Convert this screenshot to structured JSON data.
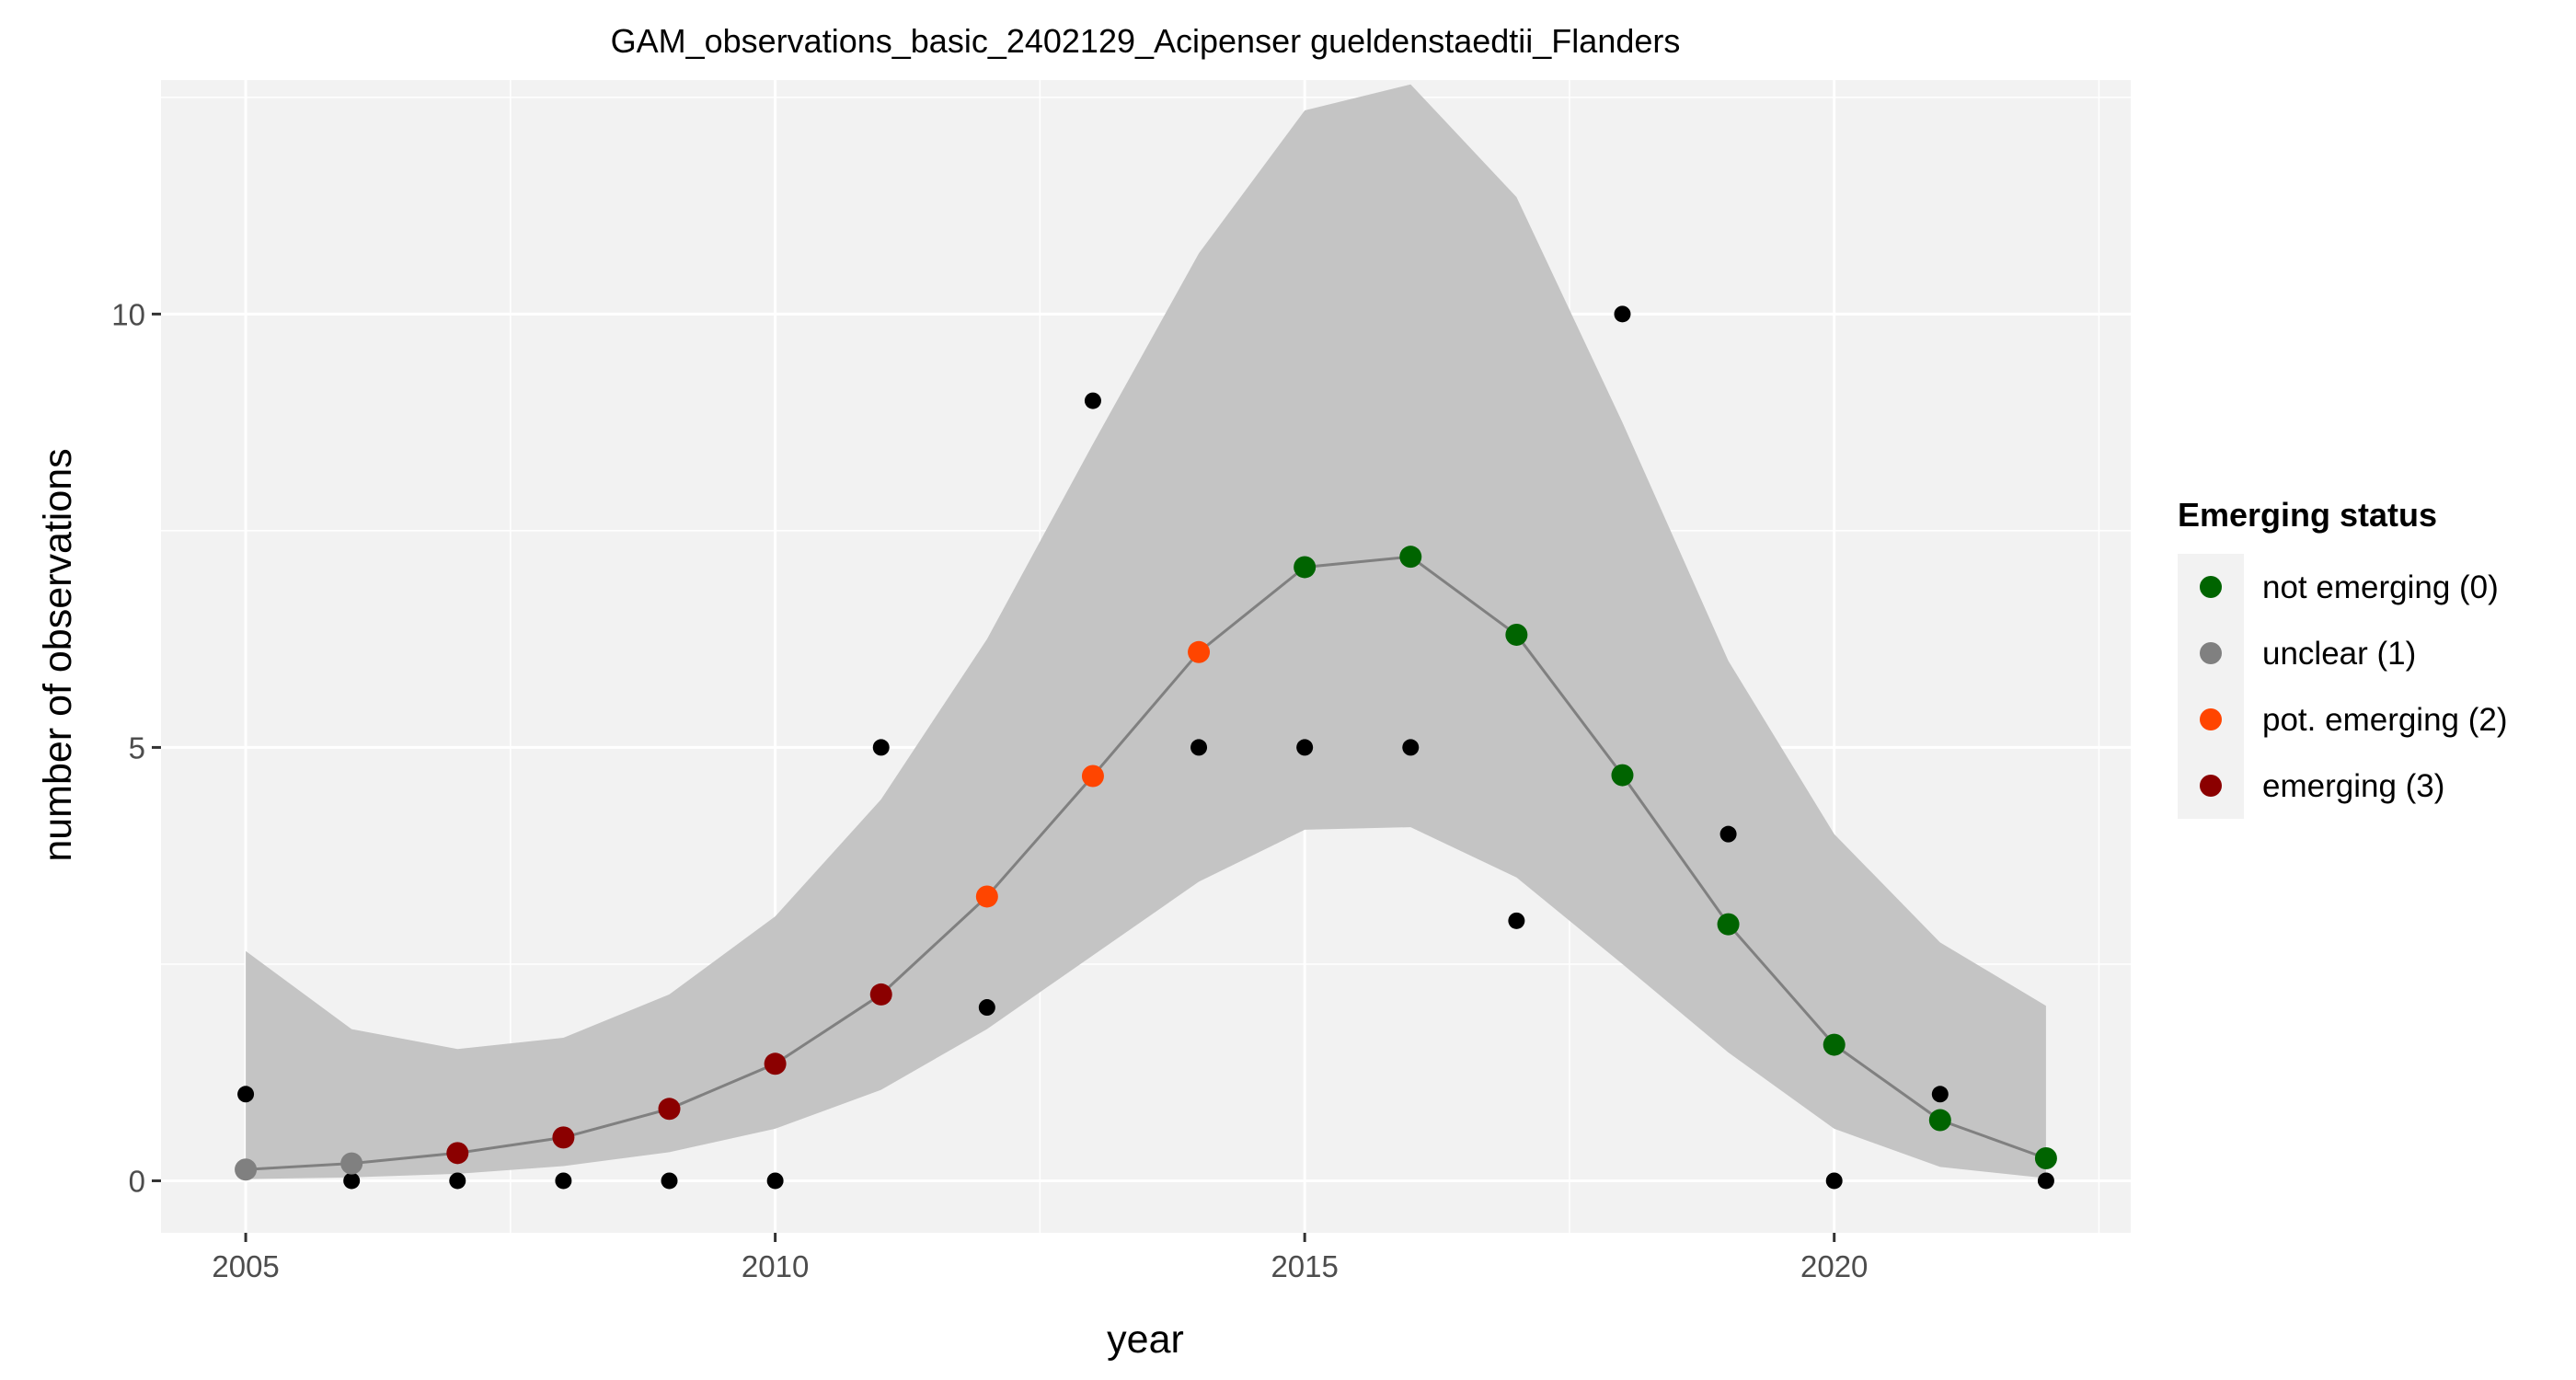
{
  "chart_data": {
    "type": "line",
    "title": "GAM_observations_basic_2402129_Acipenser gueldenstaedtii_Flanders",
    "xlabel": "year",
    "ylabel": "number of observations",
    "xlim": [
      2004.2,
      2022.8
    ],
    "ylim": [
      -0.6,
      12.7
    ],
    "x_ticks": [
      2005,
      2010,
      2015,
      2020
    ],
    "x_tick_labels": [
      "2005",
      "2010",
      "2015",
      "2020"
    ],
    "y_ticks": [
      0,
      5,
      10
    ],
    "y_tick_labels": [
      "0",
      "5",
      "10"
    ],
    "grid": true,
    "legend": {
      "title": "Emerging status",
      "position": "right",
      "entries": [
        {
          "label": "not emerging (0)",
          "color": "#006400"
        },
        {
          "label": "unclear (1)",
          "color": "#808080"
        },
        {
          "label": "pot. emerging (2)",
          "color": "#ff4500"
        },
        {
          "label": "emerging (3)",
          "color": "#8b0000"
        }
      ]
    },
    "observations": {
      "x": [
        2005,
        2006,
        2007,
        2008,
        2009,
        2010,
        2011,
        2012,
        2013,
        2014,
        2015,
        2016,
        2017,
        2018,
        2019,
        2020,
        2021,
        2022
      ],
      "y": [
        1,
        0,
        0,
        0,
        0,
        0,
        5,
        2,
        9,
        5,
        5,
        5,
        3,
        10,
        4,
        0,
        1,
        0
      ]
    },
    "fit": {
      "x": [
        2005,
        2006,
        2007,
        2008,
        2009,
        2010,
        2011,
        2012,
        2013,
        2014,
        2015,
        2016,
        2017,
        2018,
        2019,
        2020,
        2021,
        2022
      ],
      "y": [
        0.13,
        0.2,
        0.32,
        0.5,
        0.83,
        1.35,
        2.15,
        3.28,
        4.67,
        6.1,
        7.08,
        7.2,
        6.3,
        4.68,
        2.96,
        1.57,
        0.7,
        0.26
      ],
      "lower": [
        0.02,
        0.04,
        0.08,
        0.17,
        0.33,
        0.6,
        1.05,
        1.75,
        2.6,
        3.45,
        4.05,
        4.08,
        3.5,
        2.5,
        1.48,
        0.6,
        0.16,
        0.03
      ],
      "upper": [
        2.65,
        1.75,
        1.52,
        1.65,
        2.15,
        3.05,
        4.4,
        6.25,
        8.5,
        10.7,
        12.35,
        12.65,
        11.35,
        8.75,
        6.0,
        4.0,
        2.75,
        2.02
      ],
      "status": [
        1,
        1,
        3,
        3,
        3,
        3,
        3,
        2,
        2,
        2,
        0,
        0,
        0,
        0,
        0,
        0,
        0,
        0
      ]
    },
    "colors": {
      "panel": "#f2f2f2",
      "grid": "#ffffff",
      "ribbon": "#c4c4c4",
      "fit_line": "#808080",
      "observation": "#000000",
      "legend_key_bg": "#f2f2f2"
    }
  }
}
